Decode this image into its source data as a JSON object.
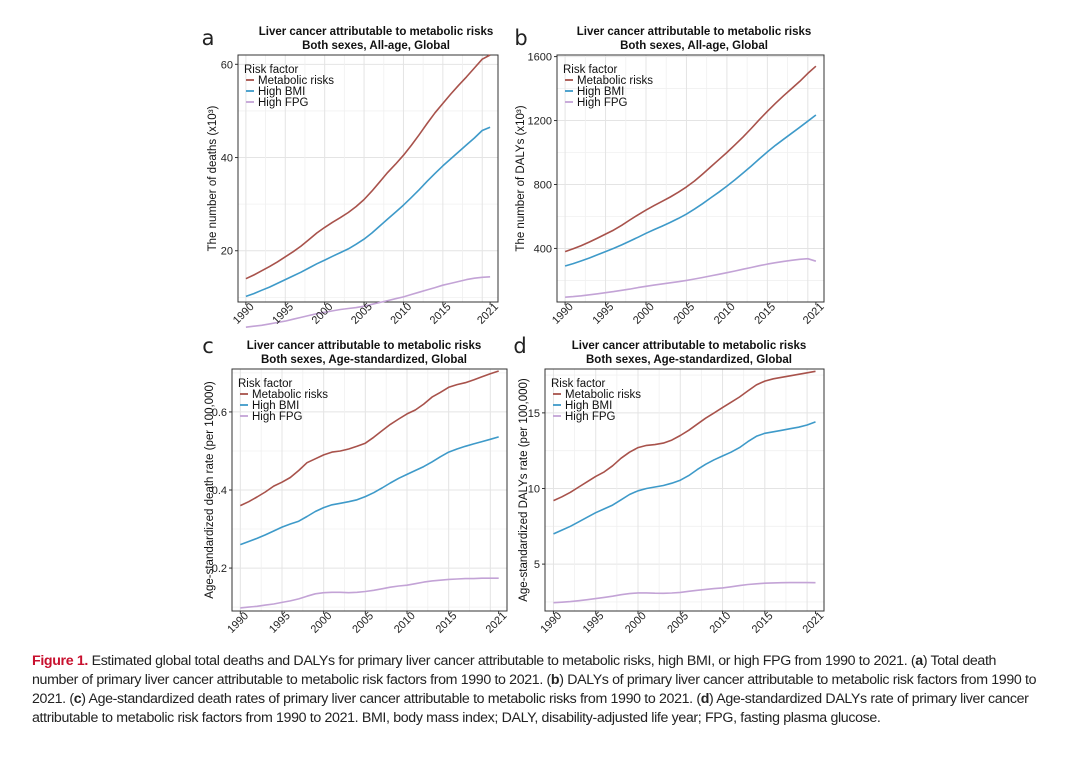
{
  "legend_title": "Risk factor",
  "series_names": [
    "Metabolic risks",
    "High BMI",
    "High FPG"
  ],
  "colors": {
    "metabolic": "#a8524b",
    "bmi": "#3e9ac9",
    "fpg": "#c3a3d6",
    "caption_label": "#c8102e"
  },
  "chart_data": [
    {
      "panel": "a",
      "type": "line",
      "title": "Liver cancer attributable to metabolic risks",
      "subtitle": "Both sexes, All-age, Global",
      "xlabel": "",
      "ylabel": "The number of deaths (x10³)",
      "x": [
        1990,
        1991,
        1992,
        1993,
        1994,
        1995,
        1996,
        1997,
        1998,
        1999,
        2000,
        2001,
        2002,
        2003,
        2004,
        2005,
        2006,
        2007,
        2008,
        2009,
        2010,
        2011,
        2012,
        2013,
        2014,
        2015,
        2016,
        2017,
        2018,
        2019,
        2020,
        2021
      ],
      "xticks": [
        1990,
        1995,
        2000,
        2005,
        2010,
        2015,
        2021
      ],
      "xlim": [
        1989,
        2022
      ],
      "ylim": [
        9,
        62
      ],
      "yticks": [
        20,
        40,
        60
      ],
      "series": [
        {
          "name": "Metabolic risks",
          "values": [
            14,
            14.8,
            15.7,
            16.6,
            17.6,
            18.7,
            19.8,
            21.0,
            22.4,
            23.8,
            25.0,
            26.1,
            27.1,
            28.2,
            29.5,
            31.0,
            32.8,
            34.8,
            36.8,
            38.6,
            40.5,
            42.6,
            44.9,
            47.3,
            49.6,
            51.6,
            53.6,
            55.5,
            57.3,
            59.2,
            61.1,
            62.0
          ]
        },
        {
          "name": "High BMI",
          "values": [
            10.2,
            10.8,
            11.5,
            12.2,
            13.0,
            13.8,
            14.6,
            15.4,
            16.3,
            17.2,
            18.0,
            18.8,
            19.6,
            20.4,
            21.4,
            22.5,
            23.8,
            25.3,
            26.8,
            28.3,
            29.8,
            31.4,
            33.1,
            34.9,
            36.6,
            38.2,
            39.7,
            41.2,
            42.7,
            44.2,
            45.8,
            46.5
          ]
        },
        {
          "name": "High FPG",
          "values": [
            3.6,
            3.8,
            4.0,
            4.3,
            4.6,
            4.9,
            5.3,
            5.7,
            6.1,
            6.5,
            6.8,
            7.1,
            7.4,
            7.6,
            7.8,
            8.1,
            8.5,
            8.9,
            9.3,
            9.7,
            10.1,
            10.6,
            11.1,
            11.6,
            12.1,
            12.6,
            13.0,
            13.4,
            13.8,
            14.1,
            14.3,
            14.4
          ]
        }
      ]
    },
    {
      "panel": "b",
      "type": "line",
      "title": "Liver cancer attributable to metabolic risks",
      "subtitle": "Both sexes, All-age, Global",
      "xlabel": "",
      "ylabel": "The number of DALYs (x10³)",
      "x": [
        1990,
        1991,
        1992,
        1993,
        1994,
        1995,
        1996,
        1997,
        1998,
        1999,
        2000,
        2001,
        2002,
        2003,
        2004,
        2005,
        2006,
        2007,
        2008,
        2009,
        2010,
        2011,
        2012,
        2013,
        2014,
        2015,
        2016,
        2017,
        2018,
        2019,
        2020,
        2021
      ],
      "xticks": [
        1990,
        1995,
        2000,
        2005,
        2010,
        2015,
        2021
      ],
      "xlim": [
        1989,
        2022
      ],
      "ylim": [
        65,
        1610
      ],
      "yticks": [
        400,
        800,
        1200,
        1600
      ],
      "series": [
        {
          "name": "Metabolic risks",
          "values": [
            380,
            398,
            418,
            440,
            465,
            490,
            515,
            545,
            578,
            610,
            640,
            668,
            695,
            722,
            752,
            785,
            822,
            865,
            910,
            955,
            1000,
            1048,
            1098,
            1150,
            1205,
            1258,
            1308,
            1355,
            1400,
            1445,
            1495,
            1540
          ]
        },
        {
          "name": "High BMI",
          "values": [
            290,
            305,
            322,
            340,
            360,
            380,
            400,
            422,
            446,
            470,
            495,
            518,
            540,
            563,
            588,
            615,
            646,
            680,
            716,
            752,
            790,
            830,
            872,
            915,
            960,
            1004,
            1045,
            1083,
            1120,
            1158,
            1196,
            1235
          ]
        },
        {
          "name": "High FPG",
          "values": [
            95,
            99,
            104,
            110,
            116,
            123,
            130,
            138,
            146,
            155,
            163,
            171,
            178,
            185,
            192,
            200,
            209,
            218,
            228,
            238,
            248,
            259,
            270,
            281,
            292,
            302,
            311,
            319,
            326,
            332,
            336,
            320
          ]
        }
      ]
    },
    {
      "panel": "c",
      "type": "line",
      "title": "Liver cancer attributable to metabolic risks",
      "subtitle": "Both sexes, Age-standardized, Global",
      "xlabel": "",
      "ylabel": "Age-standardized death rate (per 100,000)",
      "x": [
        1990,
        1991,
        1992,
        1993,
        1994,
        1995,
        1996,
        1997,
        1998,
        1999,
        2000,
        2001,
        2002,
        2003,
        2004,
        2005,
        2006,
        2007,
        2008,
        2009,
        2010,
        2011,
        2012,
        2013,
        2014,
        2015,
        2016,
        2017,
        2018,
        2019,
        2020,
        2021
      ],
      "xticks": [
        1990,
        1995,
        2000,
        2005,
        2010,
        2015,
        2021
      ],
      "xlim": [
        1989,
        2022
      ],
      "ylim": [
        0.09,
        0.71
      ],
      "yticks": [
        0.2,
        0.4,
        0.6
      ],
      "series": [
        {
          "name": "Metabolic risks",
          "values": [
            0.36,
            0.37,
            0.382,
            0.395,
            0.41,
            0.42,
            0.432,
            0.45,
            0.47,
            0.48,
            0.49,
            0.497,
            0.5,
            0.505,
            0.512,
            0.52,
            0.535,
            0.552,
            0.568,
            0.582,
            0.595,
            0.605,
            0.62,
            0.638,
            0.65,
            0.663,
            0.67,
            0.675,
            0.682,
            0.69,
            0.698,
            0.705
          ]
        },
        {
          "name": "High BMI",
          "values": [
            0.26,
            0.268,
            0.276,
            0.285,
            0.295,
            0.305,
            0.313,
            0.32,
            0.332,
            0.345,
            0.355,
            0.362,
            0.366,
            0.37,
            0.375,
            0.383,
            0.393,
            0.405,
            0.418,
            0.43,
            0.44,
            0.45,
            0.46,
            0.472,
            0.485,
            0.497,
            0.505,
            0.512,
            0.518,
            0.524,
            0.53,
            0.536
          ]
        },
        {
          "name": "High FPG",
          "values": [
            0.098,
            0.1,
            0.102,
            0.105,
            0.108,
            0.112,
            0.116,
            0.121,
            0.128,
            0.134,
            0.137,
            0.138,
            0.138,
            0.137,
            0.138,
            0.14,
            0.143,
            0.147,
            0.151,
            0.154,
            0.156,
            0.16,
            0.164,
            0.167,
            0.169,
            0.171,
            0.172,
            0.173,
            0.173,
            0.174,
            0.174,
            0.174
          ]
        }
      ]
    },
    {
      "panel": "d",
      "type": "line",
      "title": "Liver cancer attributable to metabolic risks",
      "subtitle": "Both sexes, Age-standardized, Global",
      "xlabel": "",
      "ylabel": "Age-standardized DALYs rate (per 100,000)",
      "x": [
        1990,
        1991,
        1992,
        1993,
        1994,
        1995,
        1996,
        1997,
        1998,
        1999,
        2000,
        2001,
        2002,
        2003,
        2004,
        2005,
        2006,
        2007,
        2008,
        2009,
        2010,
        2011,
        2012,
        2013,
        2014,
        2015,
        2016,
        2017,
        2018,
        2019,
        2020,
        2021
      ],
      "xticks": [
        1990,
        1995,
        2000,
        2005,
        2010,
        2015,
        2021
      ],
      "xlim": [
        1989,
        2022
      ],
      "ylim": [
        1.9,
        17.9
      ],
      "yticks": [
        5,
        10,
        15
      ],
      "series": [
        {
          "name": "Metabolic risks",
          "values": [
            9.2,
            9.45,
            9.75,
            10.1,
            10.45,
            10.8,
            11.1,
            11.5,
            12.0,
            12.4,
            12.7,
            12.85,
            12.9,
            13.0,
            13.2,
            13.5,
            13.85,
            14.25,
            14.65,
            15.0,
            15.35,
            15.7,
            16.05,
            16.45,
            16.85,
            17.1,
            17.25,
            17.35,
            17.45,
            17.55,
            17.65,
            17.75
          ]
        },
        {
          "name": "High BMI",
          "values": [
            7.0,
            7.25,
            7.5,
            7.8,
            8.1,
            8.4,
            8.65,
            8.9,
            9.25,
            9.6,
            9.85,
            10.0,
            10.1,
            10.2,
            10.35,
            10.55,
            10.85,
            11.25,
            11.6,
            11.9,
            12.15,
            12.4,
            12.7,
            13.1,
            13.45,
            13.65,
            13.75,
            13.85,
            13.95,
            14.05,
            14.2,
            14.4
          ]
        },
        {
          "name": "High FPG",
          "values": [
            2.45,
            2.48,
            2.52,
            2.58,
            2.65,
            2.72,
            2.8,
            2.88,
            2.98,
            3.05,
            3.1,
            3.1,
            3.08,
            3.07,
            3.09,
            3.13,
            3.2,
            3.27,
            3.33,
            3.38,
            3.43,
            3.5,
            3.58,
            3.65,
            3.7,
            3.74,
            3.76,
            3.77,
            3.78,
            3.78,
            3.78,
            3.77
          ]
        }
      ]
    }
  ],
  "caption": {
    "label": "Figure 1.",
    "intro": " Estimated global total deaths and DALYs for primary liver cancer attributable to metabolic risks, high BMI, or high FPG from 1990 to 2021. (",
    "a_key": "a",
    "a_text": ") Total death number of primary liver cancer attributable to metabolic risk factors from 1990 to 2021. (",
    "b_key": "b",
    "b_text": ") DALYs of primary liver cancer attributable to metabolic risk factors from 1990 to 2021. (",
    "c_key": "c",
    "c_text": ") Age-standardized death rates of primary liver cancer attributable to metabolic risks from 1990 to 2021. (",
    "d_key": "d",
    "d_text": ") Age-standardized DALYs rate of primary liver cancer attributable to metabolic risk factors from 1990 to 2021. BMI, body mass index; DALY, disability-adjusted life year; FPG, fasting plasma glucose."
  }
}
